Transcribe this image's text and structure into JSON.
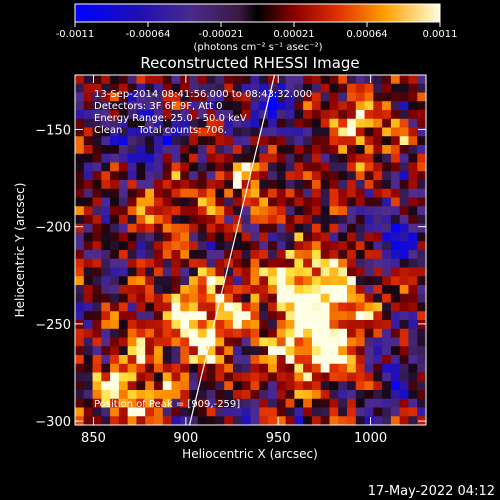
{
  "colorbar": {
    "ticks": [
      "-0.0011",
      "-0.00064",
      "-0.00021",
      "0.00021",
      "0.00064",
      "0.0011"
    ],
    "unit_label": "(photons cm⁻² s⁻¹ asec⁻²)",
    "range": [
      -0.0011,
      0.0011
    ]
  },
  "info": {
    "time": "13-Sep-2014 08:41:56.000 to 08:43:32.000",
    "detectors": "Detectors: 3F 6F 9F, Att 0",
    "energy": "Energy Range: 25.0 - 50.0 keV",
    "clean": "Clean     Total counts: 706.",
    "peak": "Position of Peak = [909,-259]"
  },
  "footer": {
    "date": "17-May-2022 04:12"
  },
  "chart_data": {
    "type": "heatmap",
    "title": "Reconstructed RHESSI Image",
    "xlabel": "Heliocentric X (arcsec)",
    "ylabel": "Heliocentric Y (arcsec)",
    "xlim": [
      840,
      1030
    ],
    "ylim": [
      -302,
      -122
    ],
    "x_ticks": [
      850,
      900,
      950,
      1000
    ],
    "y_ticks": [
      -150,
      -200,
      -250,
      -300
    ],
    "limb_line": [
      [
        902,
        -302
      ],
      [
        948,
        -122
      ]
    ],
    "peak": [
      909,
      -259
    ]
  }
}
